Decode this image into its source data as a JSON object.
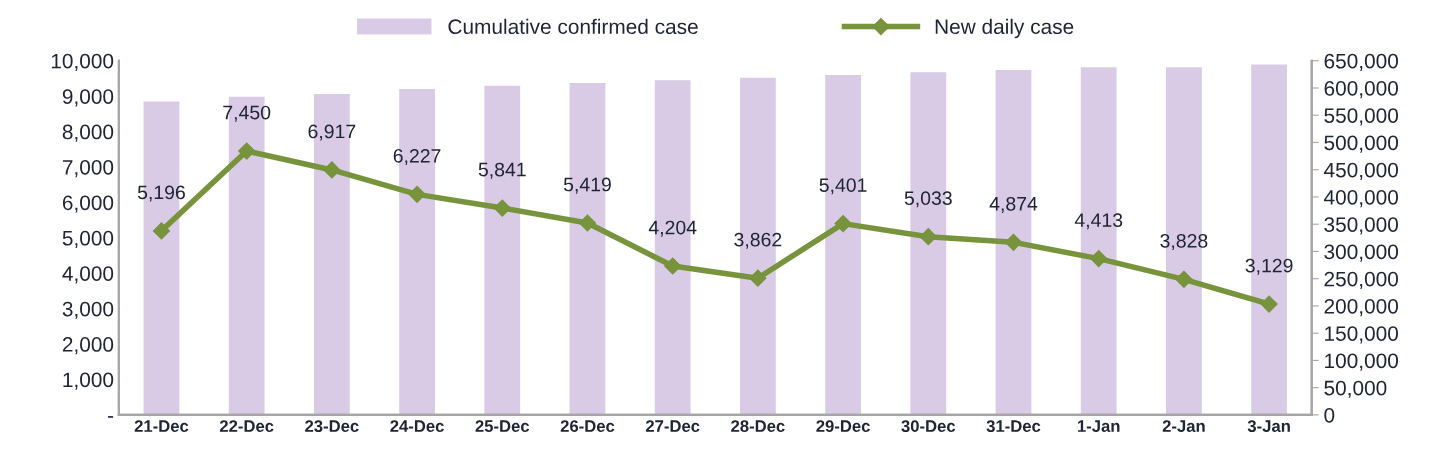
{
  "chart_data": {
    "type": "bar",
    "categories": [
      "21-Dec",
      "22-Dec",
      "23-Dec",
      "24-Dec",
      "25-Dec",
      "26-Dec",
      "27-Dec",
      "28-Dec",
      "29-Dec",
      "30-Dec",
      "31-Dec",
      "1-Jan",
      "2-Jan",
      "3-Jan"
    ],
    "series": [
      {
        "name": "Cumulative confirmed case",
        "axis": "y2",
        "color": "#d9cbe6",
        "values": [
          575000,
          584000,
          589000,
          598000,
          604000,
          609000,
          614000,
          619000,
          624000,
          629000,
          633000,
          638000,
          638000,
          643000
        ]
      },
      {
        "name": "New daily case",
        "type": "line",
        "axis": "y",
        "color": "#77933c",
        "marker": "diamond",
        "value_labels": [
          "5,196",
          "7,450",
          "6,917",
          "6,227",
          "5,841",
          "5,419",
          "4,204",
          "3,862",
          "5,401",
          "5,033",
          "4,874",
          "4,413",
          "3,828",
          "3,129"
        ],
        "values": [
          5196,
          7450,
          6917,
          6227,
          5841,
          5419,
          4204,
          3862,
          5401,
          5033,
          4874,
          4413,
          3828,
          3129
        ]
      }
    ],
    "ylim": [
      0,
      10000
    ],
    "yticks": [
      {
        "value": 0,
        "label": "-"
      },
      {
        "value": 1000,
        "label": "1,000"
      },
      {
        "value": 2000,
        "label": "2,000"
      },
      {
        "value": 3000,
        "label": "3,000"
      },
      {
        "value": 4000,
        "label": "4,000"
      },
      {
        "value": 5000,
        "label": "5,000"
      },
      {
        "value": 6000,
        "label": "6,000"
      },
      {
        "value": 7000,
        "label": "7,000"
      },
      {
        "value": 8000,
        "label": "8,000"
      },
      {
        "value": 9000,
        "label": "9,000"
      },
      {
        "value": 10000,
        "label": "10,000"
      }
    ],
    "y2lim": [
      0,
      650000
    ],
    "y2ticks": [
      0,
      {
        "value": 50000,
        "label": "50,000"
      },
      {
        "value": 100000,
        "label": "100,000"
      },
      {
        "value": 150000,
        "label": "150,000"
      },
      {
        "value": 200000,
        "label": "200,000"
      },
      {
        "value": 250000,
        "label": "250,000"
      },
      {
        "value": 300000,
        "label": "300,000"
      },
      {
        "value": 350000,
        "label": "350,000"
      },
      {
        "value": 400000,
        "label": "400,000"
      },
      {
        "value": 450000,
        "label": "450,000"
      },
      {
        "value": 500000,
        "label": "500,000"
      },
      {
        "value": 550000,
        "label": "550,000"
      },
      {
        "value": 600000,
        "label": "600,000"
      },
      {
        "value": 650000,
        "label": "650,000"
      }
    ],
    "grid": false,
    "legend": "top"
  }
}
